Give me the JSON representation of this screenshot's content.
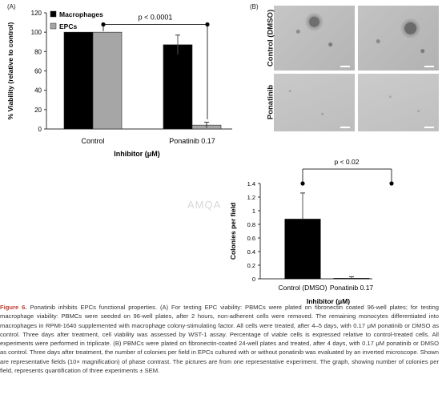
{
  "panel_a_label": "(A)",
  "panel_b_label": "(B)",
  "watermark": "AMQA",
  "chart_data": [
    {
      "type": "bar",
      "categories": [
        "Control",
        "Ponatinib 0.17"
      ],
      "series": [
        {
          "name": "Macrophages",
          "color": "#000000",
          "values": [
            100,
            87
          ],
          "errors": [
            0,
            10
          ]
        },
        {
          "name": "EPCs",
          "color": "#a6a6a6",
          "values": [
            100,
            4
          ],
          "errors": [
            0,
            3
          ]
        }
      ],
      "xlabel": "Inhibitor (μM)",
      "ylabel": "% Viability (relative to control)",
      "ylim": [
        0,
        120
      ],
      "yticks": [
        "0",
        "20",
        "40",
        "60",
        "80",
        "100",
        "120"
      ],
      "legend": "top-left",
      "annotation": "p < 0.0001"
    },
    {
      "type": "bar",
      "categories": [
        "Control (DMSO)",
        "Ponatinib 0.17"
      ],
      "series": [
        {
          "values": [
            0.88,
            0.01
          ],
          "errors": [
            0.38,
            0.02
          ],
          "color": "#000000"
        }
      ],
      "xlabel": "Inhibitor (μM)",
      "ylabel": "Colonies per field",
      "ylim": [
        0,
        1.4
      ],
      "yticks": [
        "0",
        "0.2",
        "0.4",
        "0.6",
        "0.8",
        "1",
        "1.2",
        "1.4"
      ],
      "annotation": "p < 0.02"
    }
  ],
  "microscopy": {
    "row_labels": [
      "Control (DMSO)",
      "Ponatinib"
    ]
  },
  "caption": {
    "figure_label": "Figure 6.",
    "text": "Ponatinib inhibits EPCs functional properties. (A) For testing EPC viability: PBMCs were plated on fibronectin coated 96-well plates; for testing macrophage viability: PBMCs were seeded on 96-well plates, after 2 hours, non-adherent cells were removed. The remaining monocytes differentiated into macrophages in RPMI-1640 supplemented with macrophage colony-stimulating factor. All cells were treated, after 4–5 days, with 0.17 μM ponatinib or DMSO as control. Three days after treatment, cell viability was assessed by WST-1 assay. Percentage of viable cells is expressed relative to control-treated cells. All experiments were performed in triplicate. (B) PBMCs were plated on fibronectin-coated 24-well plates and treated, after 4 days, with 0.17 μM ponatinib or DMSO as control. Three days after treatment, the number of colonies per field in EPCs cultured with or without ponatinib was evaluated by an inverted microscope. Shown are representative fields (10× magnification) of phase contrast. The pictures are from one representative experiment. The graph, showing number of colonies per field, represents quantification of three experiments ± SEM."
  }
}
